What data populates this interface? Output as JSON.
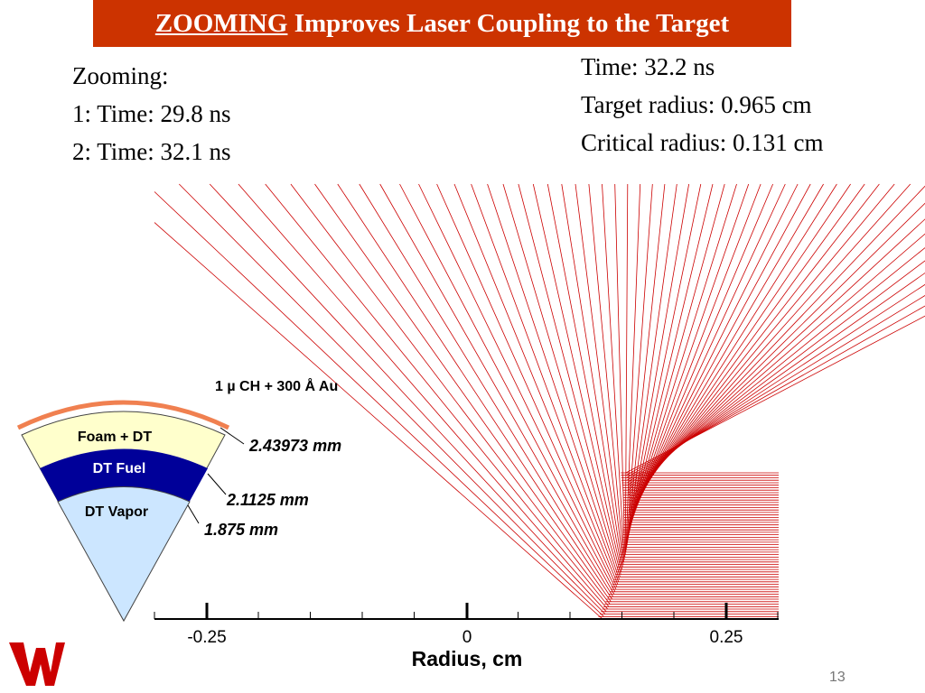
{
  "slide": {
    "title_highlight": "ZOOMING",
    "title_rest": "Improves Laser Coupling to the Target",
    "page_number": "13"
  },
  "zooming": {
    "heading": "Zooming:",
    "line1": "1: Time: 29.8 ns",
    "line2": "2: Time: 32.1 ns"
  },
  "info": {
    "time": "Time: 32.2 ns",
    "target_radius": "Target radius: 0.965 cm",
    "critical_radius": "Critical radius: 0.131 cm"
  },
  "target": {
    "coating_label": "1 µ CH + 300 Å Au",
    "layers": [
      {
        "name": "Foam + DT",
        "color": "#ffffcc"
      },
      {
        "name": "DT Fuel",
        "color": "#000099"
      },
      {
        "name": "DT Vapor",
        "color": "#cce6ff"
      }
    ],
    "coating_color": "#f08050",
    "radii_labels": [
      "2.43973 mm",
      "2.1125 mm",
      "1.875 mm"
    ]
  },
  "axis": {
    "label": "Radius, cm",
    "ticks": [
      "-0.25",
      "0",
      "0.25"
    ]
  },
  "rays": {
    "color": "#cc0000",
    "count": 60
  },
  "colors": {
    "title_bg": "#cc3300",
    "logo": "#cc0000"
  }
}
